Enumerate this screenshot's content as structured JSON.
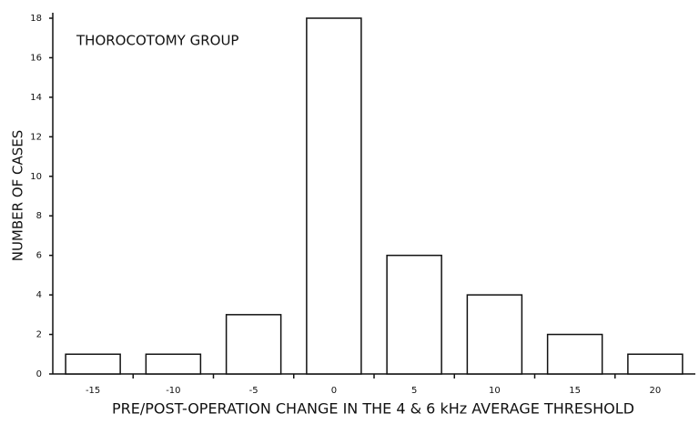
{
  "chart_data": {
    "type": "bar",
    "annotation": "THOROCOTOMY GROUP",
    "x_label": "PRE/POST-OPERATION CHANGE IN THE 4 & 6 kHz AVERAGE THRESHOLD",
    "y_label": "NUMBER OF CASES",
    "categories": [
      "-15",
      "-10",
      "-5",
      "0",
      "5",
      "10",
      "15",
      "20"
    ],
    "values": [
      1,
      1,
      3,
      18,
      6,
      4,
      2,
      1
    ],
    "color": "#ffffff",
    "ylim": [
      0,
      18
    ],
    "yticks": [
      0,
      2,
      4,
      6,
      8,
      10,
      12,
      14,
      16,
      18
    ],
    "grid": false
  }
}
